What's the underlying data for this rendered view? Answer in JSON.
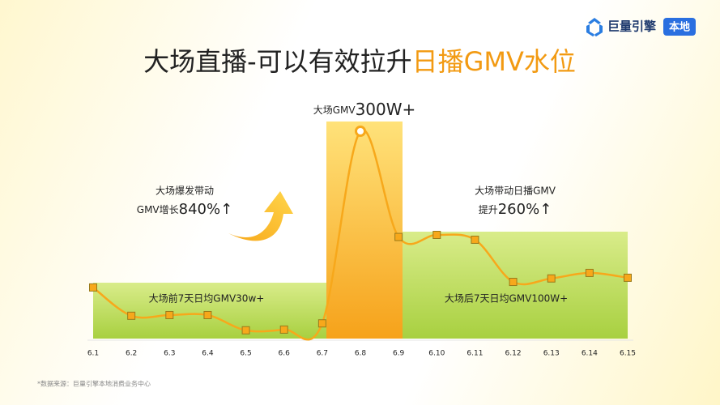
{
  "chart_data": {
    "type": "line",
    "title": "大场直播-可以有效拉升",
    "title_highlight": "日播GMV水位",
    "brand": "巨量引擎",
    "badge": "本地",
    "categories": [
      "6.1",
      "6.2",
      "6.3",
      "6.4",
      "6.5",
      "6.6",
      "6.7",
      "6.8",
      "6.9",
      "6.10",
      "6.11",
      "6.12",
      "6.13",
      "6.14",
      "6.15"
    ],
    "series": [
      {
        "name": "GMV",
        "color": "#f7a81b",
        "values": [
          74,
          33,
          34,
          34,
          12,
          13,
          22,
          300,
          147,
          150,
          143,
          82,
          87,
          95,
          88
        ]
      }
    ],
    "ylim": [
      0,
      300
    ],
    "before_label": "大场前7天日均GMV30w+",
    "after_label": "大场后7天日均GMV100W+",
    "peak_prefix": "大场GMV",
    "peak_value": "300W+",
    "growth_line1": "大场爆发带动",
    "growth_prefix": "GMV增长",
    "growth_value": "840%↑",
    "lift_line1": "大场带动日播GMV",
    "lift_prefix": "提升",
    "lift_value": "260%↑",
    "source": "*数据来源：巨量引擎本地消费业务中心"
  }
}
